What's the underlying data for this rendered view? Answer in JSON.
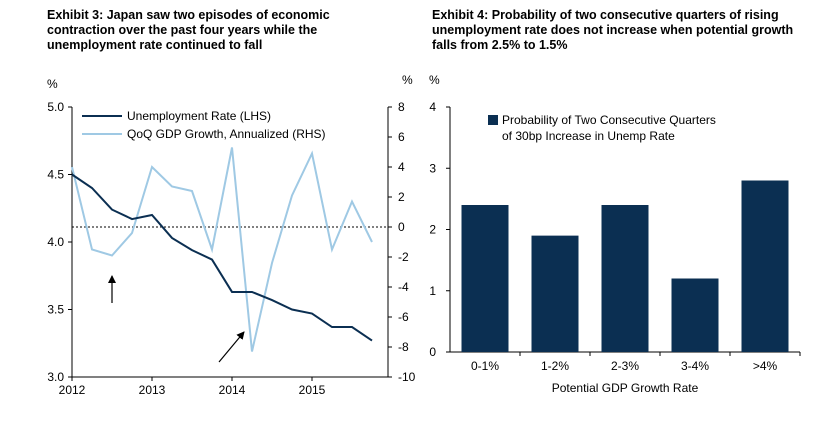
{
  "chart_data": [
    {
      "type": "line",
      "title": "Exhibit 3: Japan saw two episodes of economic contraction over the past four years while the unemployment rate continued to fall",
      "left_unit": "%",
      "right_unit": "%",
      "x_ticks": [
        "2012",
        "2013",
        "2014",
        "2015"
      ],
      "x_range": [
        2012.0,
        2015.95
      ],
      "ylim_left": [
        3.0,
        5.0
      ],
      "yticks_left": [
        "5.0",
        "4.5",
        "4.0",
        "3.5",
        "3.0"
      ],
      "ylim_right": [
        -10,
        8
      ],
      "yticks_right": [
        "8",
        "6",
        "4",
        "2",
        "0",
        "-2",
        "-4",
        "-6",
        "-8",
        "-10"
      ],
      "reference_line_right": 0,
      "series": [
        {
          "name": "Unemployment Rate (LHS)",
          "axis": "left",
          "color": "#0b2f52",
          "x": [
            2012.0,
            2012.25,
            2012.5,
            2012.75,
            2013.0,
            2013.25,
            2013.5,
            2013.75,
            2014.0,
            2014.25,
            2014.5,
            2014.75,
            2015.0,
            2015.25,
            2015.5,
            2015.75
          ],
          "values": [
            4.5,
            4.4,
            4.24,
            4.17,
            4.2,
            4.03,
            3.94,
            3.87,
            3.63,
            3.63,
            3.57,
            3.5,
            3.47,
            3.37,
            3.37,
            3.27
          ]
        },
        {
          "name": "QoQ GDP Growth, Annualized (RHS)",
          "axis": "right",
          "color": "#9fc9e4",
          "x": [
            2012.0,
            2012.25,
            2012.5,
            2012.75,
            2013.0,
            2013.25,
            2013.5,
            2013.75,
            2014.0,
            2014.25,
            2014.5,
            2014.75,
            2015.0,
            2015.25,
            2015.5,
            2015.75
          ],
          "values": [
            4.0,
            -1.5,
            -1.9,
            -0.4,
            4.0,
            2.7,
            2.4,
            -1.5,
            5.3,
            -8.3,
            -2.4,
            2.1,
            4.9,
            -1.5,
            1.7,
            -1.0
          ]
        }
      ],
      "annotations": [
        "up-arrow",
        "up-right-arrow"
      ]
    },
    {
      "type": "bar",
      "title": "Exhibit 4: Probability of two consecutive quarters of rising unemployment rate does not increase when potential growth falls from 2.5% to 1.5%",
      "y_unit": "%",
      "categories": [
        "0-1%",
        "1-2%",
        "2-3%",
        "3-4%",
        ">4%"
      ],
      "values": [
        2.4,
        1.9,
        2.4,
        1.2,
        2.8
      ],
      "ylim": [
        0,
        4
      ],
      "yticks": [
        "0",
        "1",
        "2",
        "3",
        "4"
      ],
      "xlabel": "Potential GDP Growth Rate",
      "legend": "Probability of Two Consecutive Quarters of 30bp Increase in Unemp Rate",
      "legend_line1": "Probability of Two Consecutive Quarters",
      "legend_line2": "of 30bp Increase in Unemp Rate",
      "bar_color": "#0b2f52"
    }
  ]
}
